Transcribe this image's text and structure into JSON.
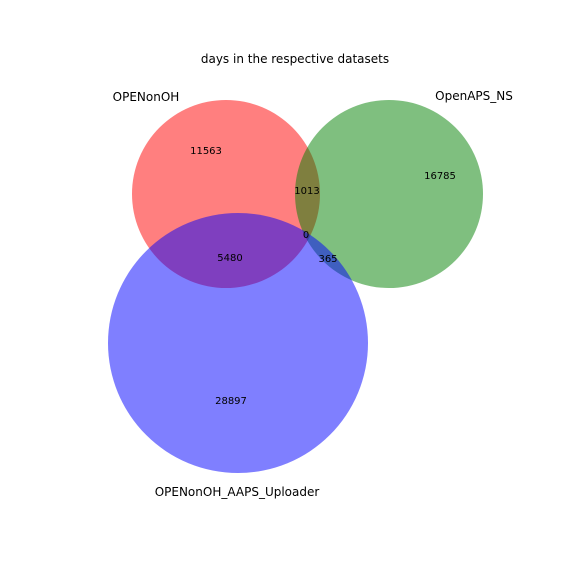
{
  "chart_data": {
    "type": "venn",
    "title": "days in the respective datasets",
    "sets": [
      {
        "name": "OPENonOH",
        "color": "#ff0000"
      },
      {
        "name": "OpenAPS_NS",
        "color": "#008000"
      },
      {
        "name": "OPENonOH_AAPS_Uploader",
        "color": "#0000ff"
      }
    ],
    "regions": {
      "only_OPENonOH": "11563",
      "only_OpenAPS_NS": "16785",
      "only_OPENonOH_AAPS_Uploader": "28897",
      "OPENonOH_and_OpenAPS_NS": "1013",
      "OPENonOH_and_OPENonOH_AAPS_Uploader": "5480",
      "OpenAPS_NS_and_OPENonOH_AAPS_Uploader": "365",
      "all_three": "0"
    },
    "fill_opacity": 0.5
  }
}
